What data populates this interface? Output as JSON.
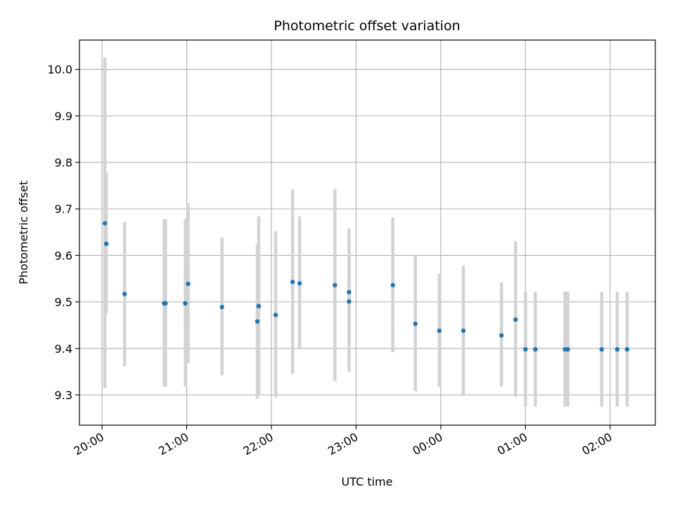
{
  "chart_data": {
    "type": "scatter",
    "title": "Photometric offset variation",
    "xlabel": "UTC time",
    "ylabel": "Photometric offset",
    "x_ticks": [
      "20:00",
      "21:00",
      "22:00",
      "23:00",
      "00:00",
      "01:00",
      "02:00"
    ],
    "y_ticks": [
      "9.3",
      "9.4",
      "9.5",
      "9.6",
      "9.7",
      "9.8",
      "9.9",
      "10.0"
    ],
    "x_tick_times": [
      "20:00",
      "21:00",
      "22:00",
      "23:00",
      "00:00",
      "01:00",
      "02:00"
    ],
    "y_tick_values": [
      9.3,
      9.4,
      9.5,
      9.6,
      9.7,
      9.8,
      9.9,
      10.0
    ],
    "xlim": [
      "19:44",
      "02:32"
    ],
    "ylim": [
      9.235,
      10.063
    ],
    "grid": true,
    "point_color": "#1f77b4",
    "errorbar_color": "#d3d3d3",
    "points": [
      {
        "x": "20:02",
        "y": 9.669,
        "yerr_low": 9.315,
        "yerr_high": 10.025
      },
      {
        "x": "20:03",
        "y": 9.625,
        "yerr_low": 9.475,
        "yerr_high": 9.778
      },
      {
        "x": "20:16",
        "y": 9.517,
        "yerr_low": 9.362,
        "yerr_high": 9.672
      },
      {
        "x": "20:44",
        "y": 9.497,
        "yerr_low": 9.318,
        "yerr_high": 9.678
      },
      {
        "x": "20:45",
        "y": 9.497,
        "yerr_low": 9.318,
        "yerr_high": 9.678
      },
      {
        "x": "20:59",
        "y": 9.497,
        "yerr_low": 9.318,
        "yerr_high": 9.678
      },
      {
        "x": "21:01",
        "y": 9.539,
        "yerr_low": 9.368,
        "yerr_high": 9.712
      },
      {
        "x": "21:25",
        "y": 9.489,
        "yerr_low": 9.342,
        "yerr_high": 9.638
      },
      {
        "x": "21:50",
        "y": 9.458,
        "yerr_low": 9.292,
        "yerr_high": 9.625
      },
      {
        "x": "21:51",
        "y": 9.491,
        "yerr_low": 9.298,
        "yerr_high": 9.684
      },
      {
        "x": "22:03",
        "y": 9.472,
        "yerr_low": 9.295,
        "yerr_high": 9.652
      },
      {
        "x": "22:15",
        "y": 9.543,
        "yerr_low": 9.345,
        "yerr_high": 9.742
      },
      {
        "x": "22:20",
        "y": 9.54,
        "yerr_low": 9.398,
        "yerr_high": 9.684
      },
      {
        "x": "22:45",
        "y": 9.536,
        "yerr_low": 9.33,
        "yerr_high": 9.743
      },
      {
        "x": "22:55",
        "y": 9.521,
        "yerr_low": 9.385,
        "yerr_high": 9.658
      },
      {
        "x": "22:55",
        "y": 9.501,
        "yerr_low": 9.35,
        "yerr_high": 9.627
      },
      {
        "x": "23:26",
        "y": 9.536,
        "yerr_low": 9.392,
        "yerr_high": 9.682
      },
      {
        "x": "23:42",
        "y": 9.453,
        "yerr_low": 9.308,
        "yerr_high": 9.6
      },
      {
        "x": "23:59",
        "y": 9.438,
        "yerr_low": 9.317,
        "yerr_high": 9.56
      },
      {
        "x": "00:16",
        "y": 9.438,
        "yerr_low": 9.298,
        "yerr_high": 9.578
      },
      {
        "x": "00:43",
        "y": 9.428,
        "yerr_low": 9.318,
        "yerr_high": 9.542
      },
      {
        "x": "00:53",
        "y": 9.462,
        "yerr_low": 9.296,
        "yerr_high": 9.63
      },
      {
        "x": "01:00",
        "y": 9.398,
        "yerr_low": 9.275,
        "yerr_high": 9.522
      },
      {
        "x": "01:07",
        "y": 9.398,
        "yerr_low": 9.275,
        "yerr_high": 9.522
      },
      {
        "x": "01:28",
        "y": 9.398,
        "yerr_low": 9.275,
        "yerr_high": 9.522
      },
      {
        "x": "01:30",
        "y": 9.398,
        "yerr_low": 9.275,
        "yerr_high": 9.522
      },
      {
        "x": "01:54",
        "y": 9.398,
        "yerr_low": 9.275,
        "yerr_high": 9.522
      },
      {
        "x": "02:05",
        "y": 9.398,
        "yerr_low": 9.275,
        "yerr_high": 9.522
      },
      {
        "x": "02:12",
        "y": 9.398,
        "yerr_low": 9.275,
        "yerr_high": 9.522
      }
    ]
  }
}
